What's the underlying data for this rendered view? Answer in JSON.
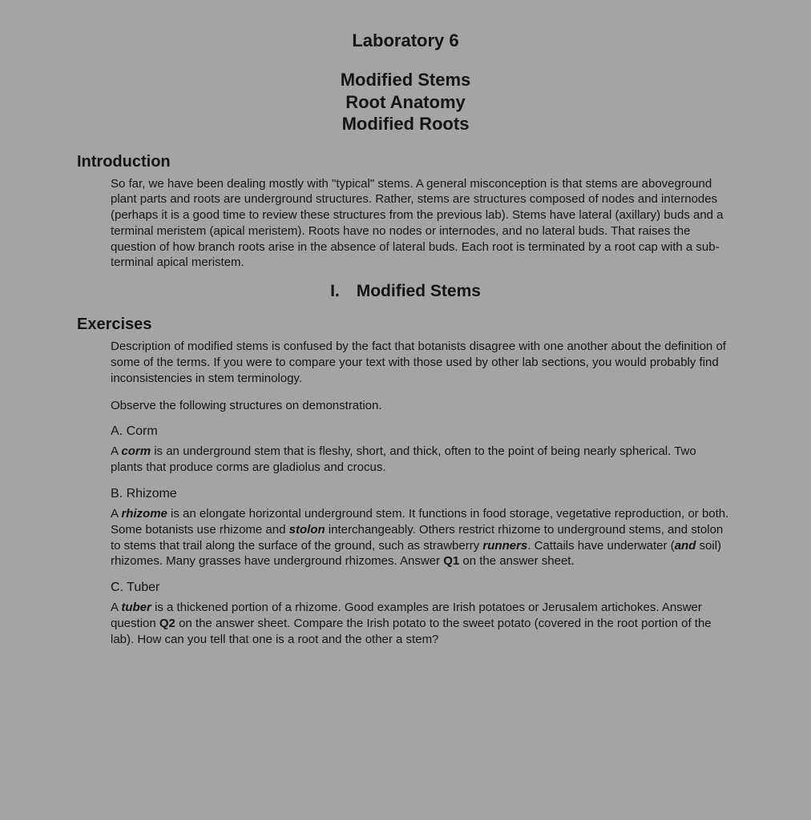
{
  "colors": {
    "background": "#a4a4a4",
    "text": "#151515"
  },
  "typography": {
    "font_family": "Arial, Helvetica, sans-serif",
    "title_fontsize_pt": 17,
    "body_fontsize_pt": 11
  },
  "header": {
    "lab_title": "Laboratory 6",
    "subtitle_line1": "Modified Stems",
    "subtitle_line2": "Root Anatomy",
    "subtitle_line3": "Modified Roots"
  },
  "introduction": {
    "heading": "Introduction",
    "paragraph": "So far, we have been dealing mostly with \"typical\" stems.  A general misconception is that stems are aboveground plant parts and roots are underground structures.  Rather, stems are structures composed of nodes and internodes (perhaps it is a good time to review these structures from the previous lab).  Stems have lateral (axillary) buds and a terminal meristem (apical meristem). Roots have no nodes or internodes, and no lateral buds.  That raises the question of how branch roots arise in the absence of lateral buds.  Each root is terminated by a root cap with a sub-terminal apical meristem."
  },
  "section1": {
    "roman_heading": "I. Modified Stems",
    "exercises_heading": "Exercises",
    "intro_para": "Description of modified stems is confused by the fact that botanists disagree with one another about the definition of some of the terms.  If you were to compare your text with those used by other lab sections, you would probably find inconsistencies in stem terminology.",
    "observe_para": "Observe the following structures on demonstration.",
    "items": {
      "a": {
        "label": "A.  Corm",
        "run1": "A ",
        "term": "corm",
        "run2": " is an underground stem that is fleshy, short, and thick, often to the point of being nearly spherical.  Two plants that produce corms are gladiolus and crocus."
      },
      "b": {
        "label": "B.  Rhizome",
        "run1": "A ",
        "term1": "rhizome",
        "run2": " is an elongate horizontal underground stem.  It functions in food storage, vegetative reproduction, or both.  Some botanists use rhizome and ",
        "term2": "stolon",
        "run3": " interchangeably.  Others restrict rhizome to underground stems, and stolon to stems that trail along the surface of the ground, such as strawberry ",
        "term3": "runners",
        "run4": ".  Cattails have underwater (",
        "term4": "and",
        "run5": " soil) rhizomes.  Many grasses have underground rhizomes.  Answer ",
        "q1": "Q1",
        "run6": " on the answer sheet."
      },
      "c": {
        "label": "C.  Tuber",
        "run1": "A ",
        "term": "tuber",
        "run2": " is a thickened portion of a rhizome.  Good examples are Irish potatoes or Jerusalem artichokes.  Answer question ",
        "q2": "Q2",
        "run3": " on the answer sheet. Compare the Irish potato to the sweet potato (covered in the root portion of the lab). How can you tell that one is a root and the other a stem?"
      }
    }
  }
}
